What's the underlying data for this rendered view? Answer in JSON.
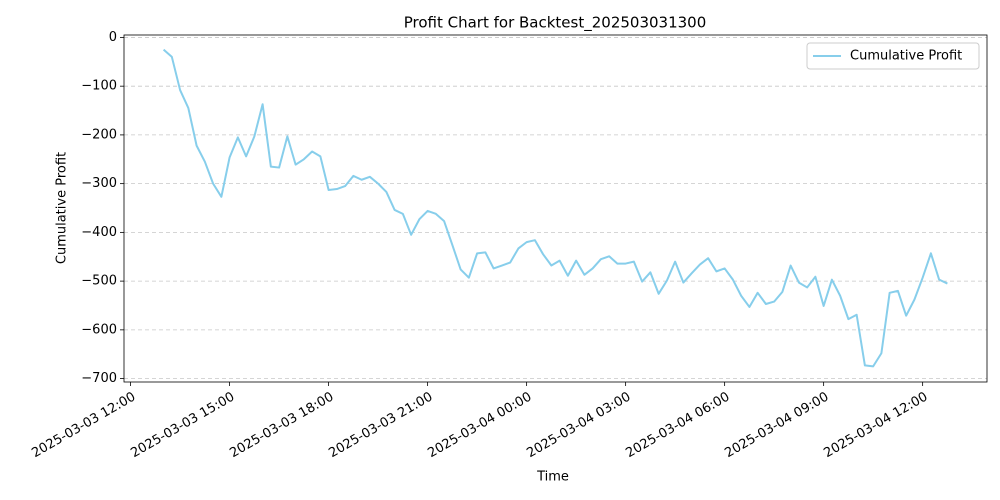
{
  "chart_data": {
    "type": "line",
    "title": "Profit Chart for Backtest_202503031300",
    "xlabel": "Time",
    "ylabel": "Cumulative Profit",
    "x": [
      "2025-03-03 13:00",
      "2025-03-03 13:15",
      "2025-03-03 13:30",
      "2025-03-03 13:45",
      "2025-03-03 14:00",
      "2025-03-03 14:15",
      "2025-03-03 14:30",
      "2025-03-03 14:45",
      "2025-03-03 15:00",
      "2025-03-03 15:15",
      "2025-03-03 15:30",
      "2025-03-03 15:45",
      "2025-03-03 16:00",
      "2025-03-03 16:15",
      "2025-03-03 16:30",
      "2025-03-03 16:45",
      "2025-03-03 17:00",
      "2025-03-03 17:15",
      "2025-03-03 17:30",
      "2025-03-03 17:45",
      "2025-03-03 18:00",
      "2025-03-03 18:15",
      "2025-03-03 18:30",
      "2025-03-03 18:45",
      "2025-03-03 19:00",
      "2025-03-03 19:15",
      "2025-03-03 19:30",
      "2025-03-03 19:45",
      "2025-03-03 20:00",
      "2025-03-03 20:15",
      "2025-03-03 20:30",
      "2025-03-03 20:45",
      "2025-03-03 21:00",
      "2025-03-03 21:15",
      "2025-03-03 21:30",
      "2025-03-03 21:45",
      "2025-03-03 22:00",
      "2025-03-03 22:15",
      "2025-03-03 22:30",
      "2025-03-03 22:45",
      "2025-03-03 23:00",
      "2025-03-03 23:15",
      "2025-03-03 23:30",
      "2025-03-03 23:45",
      "2025-03-04 00:00",
      "2025-03-04 00:15",
      "2025-03-04 00:30",
      "2025-03-04 00:45",
      "2025-03-04 01:00",
      "2025-03-04 01:15",
      "2025-03-04 01:30",
      "2025-03-04 01:45",
      "2025-03-04 02:00",
      "2025-03-04 02:15",
      "2025-03-04 02:30",
      "2025-03-04 02:45",
      "2025-03-04 03:00",
      "2025-03-04 03:15",
      "2025-03-04 03:30",
      "2025-03-04 03:45",
      "2025-03-04 04:00",
      "2025-03-04 04:15",
      "2025-03-04 04:30",
      "2025-03-04 04:45",
      "2025-03-04 05:00",
      "2025-03-04 05:15",
      "2025-03-04 05:30",
      "2025-03-04 05:45",
      "2025-03-04 06:00",
      "2025-03-04 06:15",
      "2025-03-04 06:30",
      "2025-03-04 06:45",
      "2025-03-04 07:00",
      "2025-03-04 07:15",
      "2025-03-04 07:30",
      "2025-03-04 07:45",
      "2025-03-04 08:00",
      "2025-03-04 08:15",
      "2025-03-04 08:30",
      "2025-03-04 08:45",
      "2025-03-04 09:00",
      "2025-03-04 09:15",
      "2025-03-04 09:30",
      "2025-03-04 09:45",
      "2025-03-04 10:00",
      "2025-03-04 10:15",
      "2025-03-04 10:30",
      "2025-03-04 10:45",
      "2025-03-04 11:00",
      "2025-03-04 11:15",
      "2025-03-04 11:30",
      "2025-03-04 11:45",
      "2025-03-04 12:00",
      "2025-03-04 12:15",
      "2025-03-04 12:30",
      "2025-03-04 12:45"
    ],
    "series": [
      {
        "name": "Cumulative Profit",
        "color": "#87ceeb",
        "values": [
          -25,
          -40,
          -108,
          -145,
          -222,
          -255,
          -300,
          -327,
          -246,
          -205,
          -244,
          -203,
          -137,
          -265,
          -267,
          -203,
          -261,
          -250,
          -234,
          -244,
          -313,
          -311,
          -305,
          -284,
          -292,
          -286,
          -300,
          -317,
          -354,
          -362,
          -405,
          -373,
          -356,
          -362,
          -377,
          -426,
          -476,
          -493,
          -443,
          -441,
          -474,
          -468,
          -462,
          -433,
          -420,
          -416,
          -445,
          -468,
          -458,
          -489,
          -458,
          -487,
          -474,
          -455,
          -449,
          -464,
          -464,
          -460,
          -501,
          -482,
          -526,
          -499,
          -460,
          -503,
          -484,
          -466,
          -453,
          -480,
          -474,
          -497,
          -530,
          -553,
          -524,
          -547,
          -542,
          -522,
          -468,
          -503,
          -513,
          -491,
          -551,
          -497,
          -530,
          -578,
          -569,
          -673,
          -675,
          -648,
          -524,
          -520,
          -571,
          -538,
          -493,
          -443,
          -497,
          -505
        ]
      }
    ],
    "xlim": [
      "2025-03-03 11:48",
      "2025-03-04 13:57"
    ],
    "xticks": [
      "2025-03-03 12:00",
      "2025-03-03 15:00",
      "2025-03-03 18:00",
      "2025-03-03 21:00",
      "2025-03-04 00:00",
      "2025-03-04 03:00",
      "2025-03-04 06:00",
      "2025-03-04 09:00",
      "2025-03-04 12:00"
    ],
    "ylim": [
      -707,
      5
    ],
    "yticks": [
      0,
      {
        "value": -100,
        "label": "−100"
      },
      {
        "value": -200,
        "label": "−200"
      },
      {
        "value": -300,
        "label": "−300"
      },
      {
        "value": -400,
        "label": "−400"
      },
      {
        "value": -500,
        "label": "−500"
      },
      {
        "value": -600,
        "label": "−600"
      },
      {
        "value": -700,
        "label": "−700"
      }
    ],
    "grid": true,
    "legend": "upper right"
  }
}
